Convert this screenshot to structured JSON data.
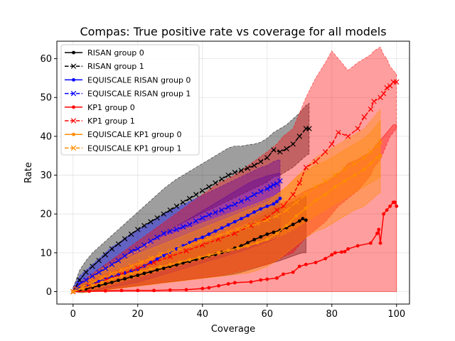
{
  "chart_data": {
    "type": "line",
    "title": "Compas: True positive rate vs coverage for all models",
    "xlabel": "Coverage",
    "ylabel": "Rate",
    "xlim": [
      -5,
      104
    ],
    "ylim": [
      -3.2,
      64.5
    ],
    "xticks": [
      0,
      20,
      40,
      60,
      80,
      100
    ],
    "yticks": [
      0,
      10,
      20,
      30,
      40,
      50,
      60
    ],
    "grid": true,
    "legend_position": "top-left",
    "series": [
      {
        "name": "RISAN group 0",
        "color": "#000000",
        "dash": "solid",
        "marker": "dot",
        "x": [
          0,
          2,
          4,
          6,
          8,
          10,
          12,
          14,
          16,
          18,
          20,
          22,
          24,
          26,
          28,
          30,
          32,
          34,
          36,
          38,
          40,
          42,
          44,
          46,
          48,
          50,
          52,
          54,
          56,
          58,
          60,
          62,
          64,
          66,
          68,
          70,
          71,
          72
        ],
        "y": [
          0,
          0.3,
          0.7,
          1.1,
          1.5,
          2.0,
          2.4,
          2.9,
          3.3,
          3.8,
          4.2,
          4.7,
          5.1,
          5.6,
          6.0,
          6.5,
          6.9,
          7.4,
          7.8,
          8.3,
          8.7,
          9.2,
          9.6,
          10.1,
          10.5,
          11.2,
          11.8,
          12.6,
          13.4,
          14.1,
          14.8,
          15.3,
          15.8,
          16.5,
          17.3,
          18.2,
          18.8,
          18.4
        ],
        "band_lo": [
          0,
          -0.2,
          -0.1,
          0.1,
          0.3,
          0.5,
          0.7,
          0.9,
          1.1,
          1.3,
          1.5,
          1.7,
          1.9,
          2.1,
          2.3,
          2.5,
          2.7,
          2.9,
          3.1,
          3.3,
          3.5,
          3.7,
          3.9,
          4.1,
          4.3,
          4.6,
          5.0,
          5.5,
          6.0,
          6.5,
          7.0,
          7.5,
          8.0,
          8.6,
          9.2,
          9.8,
          10.0,
          10.0
        ],
        "band_hi": [
          0.5,
          1.0,
          1.6,
          2.2,
          2.8,
          3.4,
          4.0,
          4.7,
          5.3,
          5.9,
          6.5,
          7.1,
          7.7,
          8.3,
          8.9,
          9.5,
          10.1,
          10.7,
          11.3,
          11.9,
          12.5,
          13.1,
          13.7,
          14.3,
          14.9,
          15.6,
          16.4,
          17.3,
          18.2,
          19.1,
          20.0,
          20.8,
          21.6,
          22.4,
          23.2,
          24.0,
          24.5,
          24.8
        ]
      },
      {
        "name": "RISAN group 1",
        "color": "#000000",
        "dash": "dashed",
        "marker": "x",
        "x": [
          0,
          2,
          4,
          6,
          8,
          10,
          12,
          14,
          16,
          18,
          20,
          22,
          24,
          26,
          28,
          30,
          32,
          34,
          36,
          38,
          40,
          42,
          44,
          46,
          48,
          50,
          52,
          54,
          56,
          58,
          60,
          62,
          64,
          66,
          68,
          70,
          72,
          73
        ],
        "y": [
          0,
          3.0,
          5.0,
          6.5,
          8.0,
          9.5,
          11.0,
          12.3,
          13.6,
          14.8,
          16.0,
          17.0,
          18.0,
          19.0,
          20.0,
          21.0,
          22.0,
          23.0,
          24.0,
          25.0,
          26.0,
          27.0,
          28.0,
          29.0,
          30.0,
          30.7,
          31.2,
          31.8,
          32.5,
          33.5,
          34.5,
          36.5,
          36.0,
          36.8,
          38.0,
          40.0,
          42.0,
          42.0
        ],
        "band_lo": [
          0,
          1.0,
          2.5,
          3.8,
          5.0,
          6.0,
          7.0,
          8.0,
          9.0,
          10.0,
          11.0,
          12.0,
          13.0,
          14.0,
          15.0,
          16.0,
          17.0,
          17.8,
          18.6,
          19.4,
          20.2,
          21.0,
          21.8,
          22.6,
          23.4,
          24.2,
          25.0,
          25.8,
          26.6,
          27.4,
          28.2,
          29.5,
          30.0,
          31.0,
          32.0,
          33.5,
          35.0,
          35.5
        ],
        "band_hi": [
          1.0,
          5.5,
          8.0,
          10.0,
          11.5,
          13.0,
          14.5,
          16.0,
          17.5,
          19.0,
          20.5,
          22.0,
          23.5,
          25.0,
          26.5,
          27.8,
          29.0,
          30.0,
          31.0,
          32.0,
          33.0,
          34.0,
          35.0,
          36.0,
          37.0,
          37.5,
          37.5,
          37.8,
          38.0,
          38.5,
          39.5,
          41.0,
          42.0,
          43.0,
          44.5,
          46.0,
          48.0,
          48.5
        ]
      },
      {
        "name": "EQUISCALE RISAN group 0",
        "color": "#0000ff",
        "dash": "solid",
        "marker": "dot",
        "x": [
          0,
          2,
          4,
          6,
          8,
          10,
          12,
          14,
          16,
          18,
          20,
          22,
          24,
          26,
          28,
          30,
          32,
          34,
          36,
          38,
          40,
          42,
          44,
          46,
          48,
          50,
          52,
          54,
          56,
          58,
          60,
          62,
          63,
          64
        ],
        "y": [
          0,
          0.8,
          1.4,
          2.0,
          2.6,
          3.2,
          3.8,
          4.3,
          4.8,
          5.3,
          5.8,
          6.6,
          7.5,
          8.4,
          9.3,
          10.2,
          11.0,
          11.8,
          12.6,
          13.4,
          14.0,
          14.8,
          15.6,
          16.4,
          17.2,
          18.0,
          18.8,
          19.6,
          20.5,
          21.3,
          22.0,
          22.6,
          23.2,
          24.0
        ],
        "band_lo": [
          0,
          -0.2,
          0,
          0.3,
          0.6,
          0.9,
          1.2,
          1.5,
          1.8,
          2.1,
          2.4,
          2.9,
          3.4,
          3.9,
          4.4,
          4.9,
          5.4,
          5.9,
          6.4,
          6.9,
          7.4,
          7.9,
          8.4,
          8.9,
          9.4,
          9.9,
          10.4,
          11.0,
          11.6,
          12.2,
          12.8,
          13.4,
          14.0,
          14.5
        ],
        "band_hi": [
          0.5,
          2.0,
          3.0,
          4.0,
          5.0,
          6.0,
          7.0,
          7.8,
          8.6,
          9.4,
          10.2,
          11.2,
          12.4,
          13.6,
          14.8,
          15.8,
          16.8,
          17.8,
          18.8,
          19.8,
          20.8,
          21.8,
          22.8,
          23.8,
          24.8,
          25.8,
          26.8,
          27.8,
          28.6,
          29.2,
          29.8,
          30.2,
          30.4,
          30.5
        ]
      },
      {
        "name": "EQUISCALE RISAN group 1",
        "color": "#0000ff",
        "dash": "dashed",
        "marker": "x",
        "x": [
          0,
          2,
          4,
          6,
          8,
          10,
          12,
          14,
          16,
          18,
          20,
          22,
          24,
          26,
          28,
          30,
          32,
          34,
          36,
          38,
          40,
          42,
          44,
          46,
          48,
          50,
          52,
          54,
          56,
          58,
          60,
          61,
          62,
          63,
          64
        ],
        "y": [
          0,
          2.0,
          3.0,
          4.0,
          5.0,
          6.0,
          7.0,
          8.0,
          9.2,
          10.4,
          11.0,
          12.0,
          13.0,
          14.0,
          15.0,
          15.5,
          16.0,
          16.7,
          17.3,
          18.2,
          19.0,
          19.8,
          20.4,
          21.0,
          21.8,
          22.5,
          23.3,
          24.0,
          25.0,
          25.8,
          26.5,
          27.0,
          27.5,
          27.8,
          28.5
        ],
        "band_lo": [
          0,
          0.5,
          1.2,
          2.0,
          2.8,
          3.6,
          4.4,
          5.2,
          6.0,
          6.8,
          7.6,
          8.2,
          8.8,
          9.4,
          10.0,
          10.6,
          11.2,
          11.8,
          12.4,
          13.0,
          13.6,
          14.2,
          14.8,
          15.4,
          16.0,
          16.6,
          17.2,
          17.8,
          18.4,
          19.0,
          19.6,
          20.0,
          20.4,
          20.8,
          21.5
        ],
        "band_hi": [
          1.0,
          4.0,
          5.5,
          7.0,
          8.5,
          10.0,
          11.5,
          12.5,
          13.8,
          15.0,
          16.0,
          17.0,
          18.0,
          19.0,
          20.0,
          20.8,
          21.6,
          22.4,
          23.2,
          24.0,
          24.8,
          25.6,
          26.4,
          27.2,
          28.0,
          28.8,
          29.6,
          30.4,
          31.2,
          32.0,
          32.5,
          33.0,
          33.5,
          33.8,
          34.0
        ]
      },
      {
        "name": "KP1 group 0",
        "color": "#ff0000",
        "dash": "solid",
        "marker": "dot",
        "x": [
          0,
          5,
          10,
          15,
          20,
          25,
          30,
          35,
          40,
          42,
          45,
          48,
          50,
          55,
          58,
          60,
          63,
          65,
          68,
          70,
          72,
          75,
          78,
          80,
          81,
          83,
          84,
          85,
          88,
          92,
          94,
          94.5,
          95,
          96,
          97,
          98,
          99,
          99.5,
          100
        ],
        "y": [
          0,
          0.1,
          0.2,
          0.3,
          0.3,
          0.3,
          0.4,
          0.5,
          0.8,
          1.0,
          1.5,
          2.0,
          2.3,
          2.5,
          3.0,
          3.2,
          3.5,
          4.5,
          5.0,
          6.5,
          7.0,
          7.5,
          8.5,
          9.5,
          10.0,
          10.2,
          10.3,
          11.0,
          11.8,
          12.5,
          15.0,
          16.0,
          12.5,
          20.0,
          21.0,
          22.0,
          23.0,
          23.0,
          22.0
        ],
        "band_lo": [
          0,
          0,
          0,
          0,
          0,
          0,
          0,
          0,
          0,
          0,
          0,
          0,
          0,
          0,
          0,
          0,
          0,
          0,
          0,
          0,
          0,
          0,
          0,
          0,
          0,
          0,
          0,
          0,
          0,
          0,
          0,
          0,
          0,
          0,
          0,
          0,
          0,
          0,
          0
        ],
        "band_hi": [
          0.5,
          2.5,
          4.5,
          6.0,
          7.5,
          9.0,
          10.5,
          12.0,
          13.5,
          14.0,
          15.0,
          16.0,
          17.0,
          19.0,
          20.0,
          21.0,
          22.0,
          23.0,
          24.0,
          25.0,
          26.0,
          27.0,
          28.0,
          29.0,
          30.0,
          31.0,
          32.0,
          33.0,
          34.0,
          36.0,
          38.0,
          38.5,
          39.0,
          40.0,
          41.0,
          42.0,
          43.0,
          43.0,
          43.0
        ]
      },
      {
        "name": "KP1 group 1",
        "color": "#ff0000",
        "dash": "dashed",
        "marker": "x",
        "x": [
          0,
          5,
          10,
          15,
          20,
          25,
          30,
          35,
          40,
          45,
          50,
          55,
          60,
          63,
          65,
          68,
          70,
          72,
          75,
          78,
          80,
          82,
          85,
          88,
          90,
          92,
          93,
          95,
          96,
          97,
          98,
          99,
          100
        ],
        "y": [
          0,
          1.5,
          3.0,
          4.5,
          6.0,
          7.5,
          9.0,
          10.5,
          12.0,
          13.5,
          15.0,
          17.0,
          19.0,
          21.0,
          22.0,
          25.0,
          28.0,
          32.0,
          33.5,
          36.0,
          38.0,
          41.0,
          40.0,
          42.0,
          45.0,
          47.0,
          49.0,
          50.0,
          51.0,
          52.5,
          53.0,
          54.0,
          54.0
        ],
        "band_lo": [
          0,
          0,
          0.5,
          1.0,
          1.5,
          2.0,
          2.5,
          3.0,
          3.5,
          4.0,
          5.0,
          6.0,
          7.0,
          8.0,
          9.0,
          10.0,
          12.0,
          14.0,
          16.0,
          18.0,
          20.0,
          22.0,
          24.0,
          26.0,
          28.0,
          30.0,
          32.0,
          34.0,
          36.0,
          38.0,
          40.0,
          41.0,
          42.0
        ],
        "band_hi": [
          1.0,
          4.0,
          7.0,
          10.0,
          13.0,
          16.0,
          19.0,
          22.0,
          25.0,
          28.0,
          30.0,
          33.0,
          36.0,
          38.0,
          40.0,
          42.0,
          46.0,
          50.0,
          55.0,
          59.0,
          62.0,
          60.0,
          57.0,
          59.0,
          60.0,
          61.0,
          62.0,
          63.0,
          61.0,
          60.0,
          58.0,
          57.0,
          56.0
        ]
      },
      {
        "name": "EQUISCALE KP1 group 0",
        "color": "#ff8c00",
        "dash": "solid",
        "marker": "dot",
        "x": [
          0,
          3,
          6,
          9,
          12,
          15,
          18,
          21,
          24,
          27,
          30,
          33,
          36,
          39,
          42,
          45,
          48,
          51,
          54,
          57,
          60,
          63,
          66,
          69,
          72,
          75,
          78,
          81,
          84,
          87,
          90,
          92,
          94,
          95
        ],
        "y": [
          0,
          0.8,
          1.6,
          2.4,
          3.2,
          4.0,
          4.6,
          5.2,
          5.8,
          6.4,
          7.0,
          7.6,
          8.2,
          8.8,
          9.4,
          10.0,
          10.6,
          11.2,
          11.8,
          12.6,
          13.5,
          15.0,
          17.0,
          19.5,
          21.5,
          23.5,
          25.0,
          27.0,
          28.5,
          30.0,
          31.5,
          33.0,
          34.5,
          35.0
        ],
        "band_lo": [
          0,
          -0.3,
          0,
          0.3,
          0.6,
          0.9,
          1.2,
          1.5,
          1.8,
          2.1,
          2.4,
          2.7,
          3.0,
          3.3,
          3.6,
          3.9,
          4.2,
          4.5,
          4.8,
          5.5,
          6.5,
          8.0,
          10.0,
          12.0,
          14.0,
          15.5,
          16.5,
          18.0,
          19.5,
          21.0,
          22.0,
          23.5,
          25.0,
          25.5
        ],
        "band_hi": [
          0.5,
          2.0,
          3.5,
          5.0,
          6.5,
          8.0,
          9.0,
          10.0,
          11.0,
          12.0,
          13.0,
          14.0,
          15.0,
          16.0,
          17.0,
          18.0,
          19.0,
          20.0,
          21.0,
          22.0,
          23.0,
          25.0,
          27.0,
          29.5,
          31.0,
          32.5,
          33.5,
          35.0,
          36.5,
          38.0,
          39.5,
          41.0,
          43.0,
          44.0
        ]
      },
      {
        "name": "EQUISCALE KP1 group 1",
        "color": "#ff8c00",
        "dash": "dashed",
        "marker": "x",
        "x": [
          0,
          3,
          6,
          9,
          12,
          15,
          18,
          21,
          24,
          27,
          30,
          33,
          36,
          39,
          42,
          45,
          48,
          51,
          54,
          57,
          60,
          63,
          66,
          69,
          72,
          75,
          78,
          81,
          84,
          87,
          90,
          92,
          94,
          95
        ],
        "y": [
          0,
          1.2,
          2.4,
          3.6,
          4.6,
          5.6,
          6.6,
          7.6,
          8.6,
          9.6,
          10.4,
          11.2,
          12.0,
          12.8,
          13.6,
          14.4,
          15.2,
          16.0,
          16.8,
          17.6,
          18.5,
          19.5,
          21.0,
          23.0,
          25.0,
          27.0,
          28.5,
          30.0,
          31.5,
          33.0,
          34.5,
          36.0,
          37.5,
          38.5
        ],
        "band_lo": [
          0,
          0,
          0.5,
          1.2,
          1.9,
          2.6,
          3.3,
          4.0,
          4.7,
          5.4,
          6.1,
          6.8,
          7.5,
          8.2,
          8.9,
          9.6,
          10.3,
          11.0,
          11.7,
          12.4,
          13.1,
          14.0,
          15.0,
          16.5,
          18.0,
          19.5,
          21.0,
          22.5,
          24.0,
          25.5,
          27.0,
          28.0,
          29.0,
          29.5
        ],
        "band_hi": [
          1.0,
          2.5,
          4.3,
          6.0,
          7.3,
          8.6,
          9.9,
          11.2,
          12.5,
          13.8,
          14.7,
          15.6,
          16.5,
          17.4,
          18.3,
          19.2,
          20.1,
          21.0,
          21.9,
          22.8,
          23.9,
          25.0,
          27.0,
          29.5,
          32.0,
          34.5,
          36.0,
          37.5,
          39.0,
          40.5,
          42.0,
          44.0,
          46.0,
          47.0
        ]
      }
    ]
  }
}
